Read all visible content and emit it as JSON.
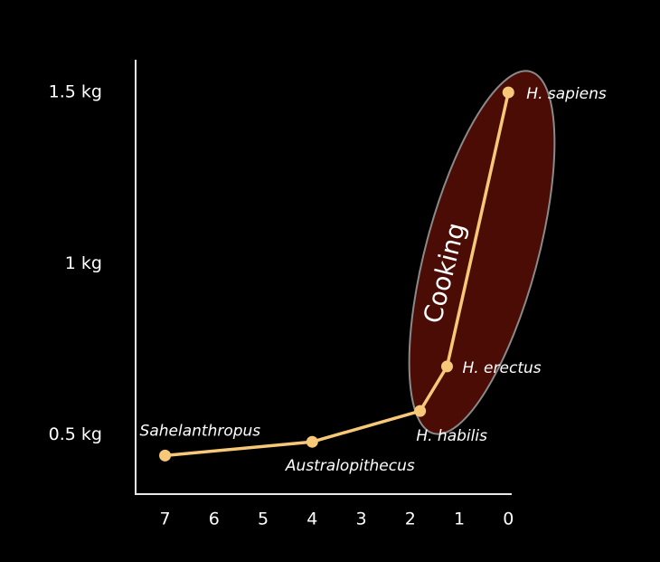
{
  "chart_data": {
    "type": "line",
    "x": [
      7,
      4,
      1.8,
      1.25,
      0
    ],
    "values": [
      0.44,
      0.48,
      0.57,
      0.7,
      1.5
    ],
    "point_labels": [
      "Sahelanthropus",
      "Australopithecus",
      "H. habilis",
      "H. erectus",
      "H. sapiens"
    ],
    "color": "#f7c878",
    "xlim": [
      7.6,
      -0.05
    ],
    "xticks": [
      7,
      6,
      5,
      4,
      3,
      2,
      1,
      0
    ],
    "ylim": [
      0.33,
      1.59
    ],
    "yticks": [
      {
        "value": 0.5,
        "label": "0.5 kg"
      },
      {
        "value": 1,
        "label": "1 kg"
      },
      {
        "value": 1.5,
        "label": "1.5 kg"
      }
    ],
    "annotation": "Cooking"
  }
}
